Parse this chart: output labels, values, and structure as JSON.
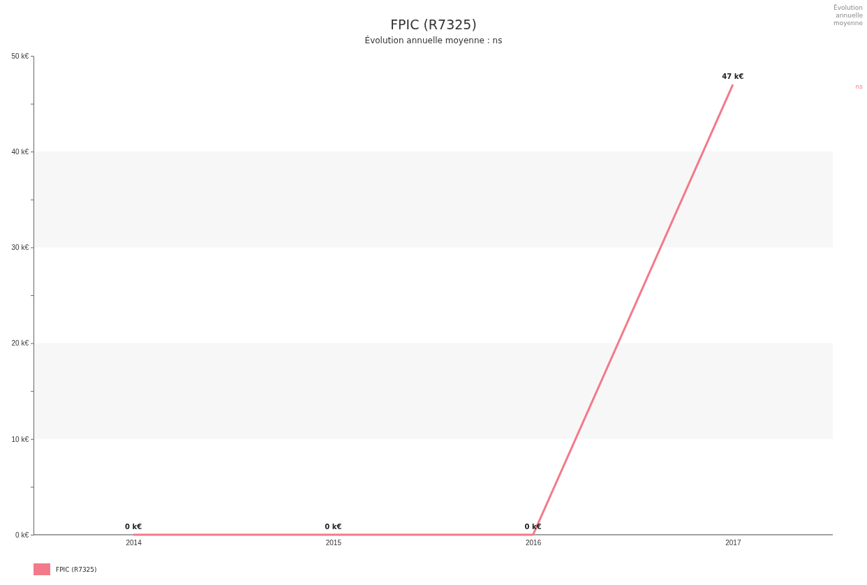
{
  "chart_data": {
    "type": "line",
    "title": "FPIC (R7325)",
    "subtitle": "Évolution annuelle moyenne : ns",
    "categories": [
      "2014",
      "2015",
      "2016",
      "2017"
    ],
    "series": [
      {
        "name": "FPIC (R7325)",
        "color": "#f27a8a",
        "values": [
          0,
          0,
          0,
          47
        ],
        "value_labels": [
          "0 k€",
          "0 k€",
          "0 k€",
          "47 k€"
        ]
      }
    ],
    "ylim": [
      0,
      50
    ],
    "yticks": [
      {
        "value": 0,
        "label": "0 k€"
      },
      {
        "value": 5,
        "label": null
      },
      {
        "value": 10,
        "label": "10 k€"
      },
      {
        "value": 15,
        "label": null
      },
      {
        "value": 20,
        "label": "20 k€"
      },
      {
        "value": 25,
        "label": null
      },
      {
        "value": 30,
        "label": "30 k€"
      },
      {
        "value": 35,
        "label": null
      },
      {
        "value": 40,
        "label": "40 k€"
      },
      {
        "value": 45,
        "label": null
      },
      {
        "value": 50,
        "label": "50 k€"
      }
    ],
    "bands": [
      {
        "axis": "y",
        "from": 10,
        "to": 20,
        "color": "#f7f7f7"
      },
      {
        "axis": "y",
        "from": 30,
        "to": 40,
        "color": "#f7f7f7"
      }
    ],
    "legend": "bottom left",
    "marker": "none",
    "line_style": "solid",
    "annotations": [
      "Évolution annuelle moyenne",
      "ns"
    ]
  }
}
